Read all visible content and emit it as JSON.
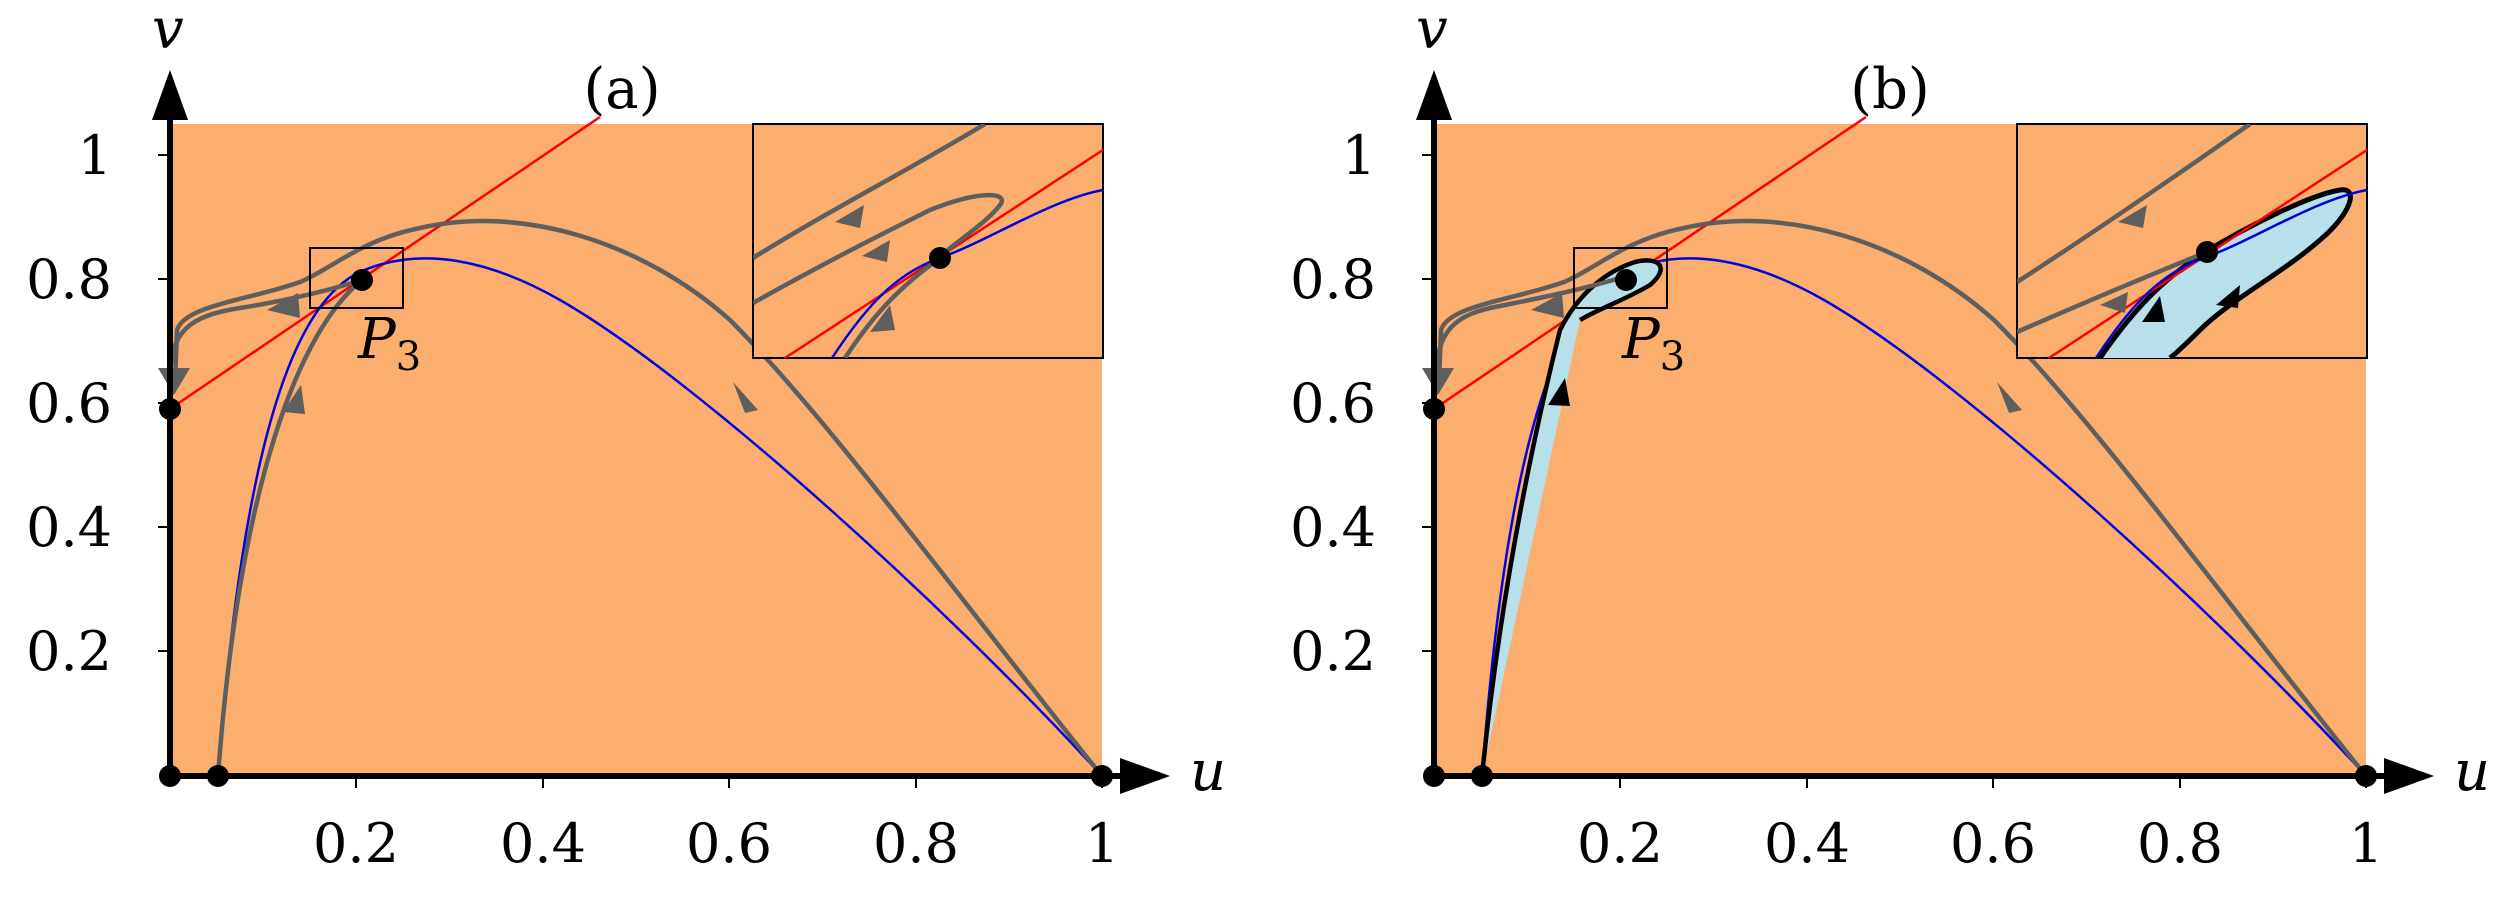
{
  "colors": {
    "region": "#FBAE6E",
    "cycle_fill": "#B8E0EA",
    "red_nullcline": "#FF0000",
    "blue_nullcline": "#0000DD",
    "trajectory": "#5E5E5E",
    "axis": "#000000"
  },
  "panels": [
    {
      "label": "(a)",
      "x_axis_name": "u",
      "y_axis_name": "v",
      "x_ticks": [
        "0.2",
        "0.4",
        "0.6",
        "0.8",
        "1"
      ],
      "y_ticks": [
        "0.2",
        "0.4",
        "0.6",
        "0.8",
        "1"
      ],
      "point_label": "P",
      "point_subscript": "3",
      "limit_cycle": false
    },
    {
      "label": "(b)",
      "x_axis_name": "u",
      "y_axis_name": "v",
      "x_ticks": [
        "0.2",
        "0.4",
        "0.6",
        "0.8",
        "1"
      ],
      "y_ticks": [
        "0.2",
        "0.4",
        "0.6",
        "0.8",
        "1"
      ],
      "point_label": "P",
      "point_subscript": "3",
      "limit_cycle": true
    }
  ]
}
